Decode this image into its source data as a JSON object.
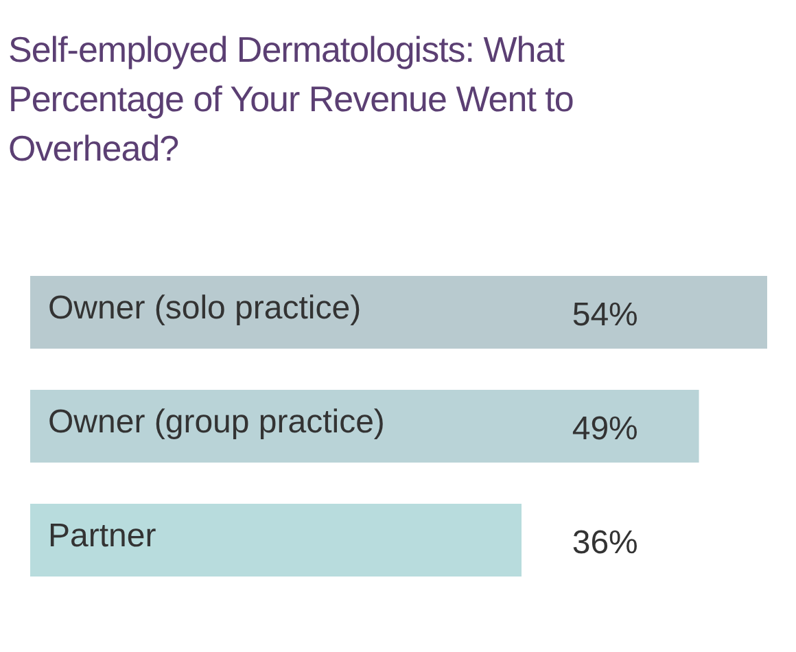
{
  "chart_data": {
    "type": "bar",
    "orientation": "horizontal",
    "title": "Self-employed Dermatologists: What Percentage of Your Revenue Went to Overhead?",
    "categories": [
      "Owner (solo practice)",
      "Owner (group practice)",
      "Partner"
    ],
    "values": [
      54,
      49,
      36
    ],
    "value_labels": [
      "54%",
      "49%",
      "36%"
    ],
    "colors": [
      "#b8cacf",
      "#b9d3d7",
      "#b8dcdd"
    ],
    "legend": false
  }
}
